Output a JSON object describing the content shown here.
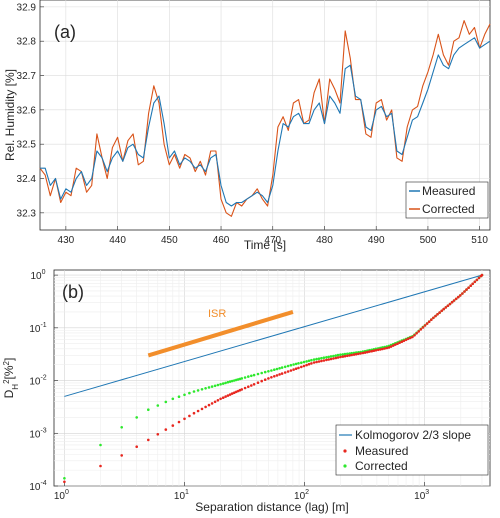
{
  "chart_data": [
    {
      "type": "line",
      "panel_label": "(a)",
      "xlabel": "Time [s]",
      "ylabel": "Rel. Humidity [%]",
      "xlim": [
        425,
        512
      ],
      "ylim": [
        32.25,
        32.92
      ],
      "xticks": [
        430,
        440,
        450,
        460,
        470,
        480,
        490,
        500,
        510
      ],
      "yticks": [
        32.3,
        32.4,
        32.5,
        32.6,
        32.7,
        32.8,
        32.9
      ],
      "grid": true,
      "legend_position": "bottom-right",
      "x": [
        425,
        426,
        427,
        428,
        429,
        430,
        431,
        432,
        433,
        434,
        435,
        436,
        437,
        438,
        439,
        440,
        441,
        442,
        443,
        444,
        445,
        446,
        447,
        448,
        449,
        450,
        451,
        452,
        453,
        454,
        455,
        456,
        457,
        458,
        459,
        460,
        461,
        462,
        463,
        464,
        465,
        466,
        467,
        468,
        469,
        470,
        471,
        472,
        473,
        474,
        475,
        476,
        477,
        478,
        479,
        480,
        481,
        482,
        483,
        484,
        485,
        486,
        487,
        488,
        489,
        490,
        491,
        492,
        493,
        494,
        495,
        496,
        497,
        498,
        499,
        500,
        501,
        502,
        503,
        504,
        505,
        506,
        507,
        508,
        509,
        510,
        511,
        512
      ],
      "series": [
        {
          "name": "Measured",
          "color": "#1f77b4",
          "values": [
            32.43,
            32.43,
            32.38,
            32.4,
            32.34,
            32.37,
            32.36,
            32.4,
            32.42,
            32.38,
            32.4,
            32.48,
            32.46,
            32.42,
            32.46,
            32.48,
            32.45,
            32.49,
            32.5,
            32.47,
            32.46,
            32.55,
            32.62,
            32.64,
            32.56,
            32.46,
            32.48,
            32.44,
            32.46,
            32.45,
            32.43,
            32.44,
            32.42,
            32.46,
            32.47,
            32.38,
            32.33,
            32.32,
            32.33,
            32.33,
            32.34,
            32.35,
            32.36,
            32.35,
            32.33,
            32.38,
            32.48,
            32.56,
            32.55,
            32.58,
            32.59,
            32.56,
            32.56,
            32.6,
            32.62,
            32.56,
            32.64,
            32.62,
            32.59,
            32.72,
            32.73,
            32.64,
            32.63,
            32.55,
            32.54,
            32.6,
            32.61,
            32.58,
            32.59,
            32.48,
            32.47,
            32.52,
            32.57,
            32.58,
            32.62,
            32.66,
            32.71,
            32.76,
            32.73,
            32.72,
            32.76,
            32.78,
            32.79,
            32.8,
            32.81,
            32.78,
            32.79,
            32.8
          ]
        },
        {
          "name": "Corrected",
          "color": "#d95319",
          "values": [
            32.43,
            32.41,
            32.35,
            32.4,
            32.33,
            32.36,
            32.35,
            32.43,
            32.42,
            32.36,
            32.38,
            32.53,
            32.46,
            32.4,
            32.49,
            32.52,
            32.45,
            32.51,
            32.53,
            32.44,
            32.45,
            32.59,
            32.67,
            32.62,
            32.5,
            32.44,
            32.47,
            32.43,
            32.47,
            32.46,
            32.42,
            32.45,
            32.41,
            32.48,
            32.48,
            32.34,
            32.3,
            32.29,
            32.33,
            32.32,
            32.34,
            32.35,
            32.37,
            32.34,
            32.32,
            32.41,
            32.55,
            32.58,
            32.54,
            32.62,
            32.63,
            32.56,
            32.57,
            32.65,
            32.69,
            32.56,
            32.69,
            32.66,
            32.62,
            32.83,
            32.75,
            32.63,
            32.63,
            32.53,
            32.52,
            32.62,
            32.63,
            32.57,
            32.6,
            32.46,
            32.45,
            32.55,
            32.6,
            32.61,
            32.67,
            32.71,
            32.76,
            32.82,
            32.76,
            32.73,
            32.8,
            32.81,
            32.86,
            32.82,
            32.84,
            32.78,
            32.82,
            32.85
          ]
        }
      ]
    },
    {
      "type": "scatter",
      "panel_label": "(b)",
      "annotation": "ISR",
      "xlabel": "Separation distance (lag) [m]",
      "ylabel": "D_H^2[%^2]",
      "xscale": "log",
      "yscale": "log",
      "xlim": [
        0.82,
        3500
      ],
      "ylim": [
        0.0001,
        1.25
      ],
      "xticks": [
        1,
        10,
        100,
        1000
      ],
      "yticks": [
        0.0001,
        0.001,
        0.01,
        0.1,
        1
      ],
      "grid": true,
      "legend_position": "bottom-right",
      "isr_line": {
        "color": "#f28e2b",
        "x": [
          5,
          80
        ],
        "y": [
          0.03,
          0.2
        ]
      },
      "series": [
        {
          "name": "Kolmogorov 2/3 slope",
          "kind": "line",
          "color": "#1f77b4",
          "x": [
            1,
            3000
          ],
          "y": [
            0.005,
            1.0
          ]
        },
        {
          "name": "Measured",
          "kind": "points",
          "color": "#e8271f",
          "x": [
            1,
            2,
            3,
            5,
            8,
            12,
            20,
            30,
            50,
            80,
            120,
            200,
            300,
            500,
            800,
            1200,
            2000,
            3000
          ],
          "y": [
            0.00012,
            0.00024,
            0.00038,
            0.00075,
            0.0014,
            0.0024,
            0.0045,
            0.0068,
            0.011,
            0.016,
            0.022,
            0.028,
            0.033,
            0.042,
            0.068,
            0.16,
            0.42,
            1.0
          ]
        },
        {
          "name": "Corrected",
          "kind": "points",
          "color": "#2ee82e",
          "x": [
            1,
            2,
            3,
            5,
            8,
            12,
            20,
            30,
            50,
            80,
            120,
            200,
            300,
            500,
            800,
            1200,
            2000,
            3000
          ],
          "y": [
            0.00014,
            0.0006,
            0.0013,
            0.0028,
            0.0045,
            0.0062,
            0.0085,
            0.011,
            0.015,
            0.02,
            0.025,
            0.031,
            0.035,
            0.045,
            0.07,
            0.16,
            0.42,
            1.0
          ]
        }
      ]
    }
  ],
  "tick_labels": {
    "a_x": [
      "430",
      "440",
      "450",
      "460",
      "470",
      "480",
      "490",
      "500",
      "510"
    ],
    "a_y": [
      "32.3",
      "32.4",
      "32.5",
      "32.6",
      "32.7",
      "32.8",
      "32.9"
    ]
  }
}
